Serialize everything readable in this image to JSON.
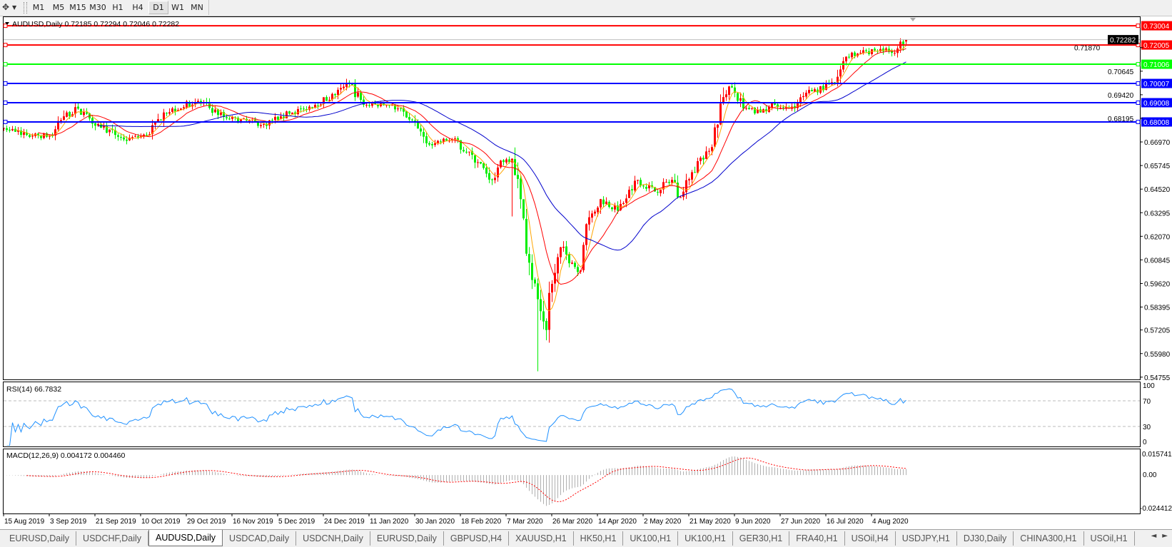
{
  "toolbar": {
    "timeframes": [
      "M1",
      "M5",
      "M15",
      "M30",
      "H1",
      "H4",
      "D1",
      "W1",
      "MN"
    ],
    "active_timeframe": "D1",
    "icons": [
      "crosshair-draw-icon",
      "dropdown-arrow-icon"
    ]
  },
  "chart": {
    "symbol_info": "AUDUSD,Daily  0.72185 0.72294 0.72046 0.72282",
    "price_axis_labels": [
      "0.71870",
      "0.70645",
      "0.69420",
      "0.68195",
      "0.66970",
      "0.65745",
      "0.64520",
      "0.63295",
      "0.62070",
      "0.60845",
      "0.59620",
      "0.58395",
      "0.57205",
      "0.55980",
      "0.54755"
    ],
    "current_price": {
      "label": "0.72282",
      "value": 0.72282
    },
    "horizontal_lines": [
      {
        "label": "0.73004",
        "value": 0.73004,
        "color": "#ff0000"
      },
      {
        "label": "0.72005",
        "value": 0.72005,
        "color": "#ff0000"
      },
      {
        "label": "0.71006",
        "value": 0.71006,
        "color": "#00ff00"
      },
      {
        "label": "0.70007",
        "value": 0.70007,
        "color": "#0000ff"
      },
      {
        "label": "0.69008",
        "value": 0.69008,
        "color": "#0000ff"
      },
      {
        "label": "0.68008",
        "value": 0.68008,
        "color": "#0000ff"
      }
    ],
    "date_labels": [
      "15 Aug 2019",
      "3 Sep 2019",
      "21 Sep 2019",
      "10 Oct 2019",
      "29 Oct 2019",
      "16 Nov 2019",
      "5 Dec 2019",
      "24 Dec 2019",
      "11 Jan 2020",
      "30 Jan 2020",
      "18 Feb 2020",
      "7 Mar 2020",
      "26 Mar 2020",
      "14 Apr 2020",
      "2 May 2020",
      "21 May 2020",
      "9 Jun 2020",
      "27 Jun 2020",
      "16 Jul 2020",
      "4 Aug 2020"
    ]
  },
  "chart_data": {
    "type": "candlestick",
    "symbol": "AUDUSD",
    "timeframe": "Daily",
    "ylim": [
      0.5464,
      0.7349
    ],
    "colors": {
      "bull": "#ff0000",
      "bear": "#00ee00",
      "ma_fast": "#ffa500",
      "ma_mid": "#ff0000",
      "ma_slow": "#0000cc",
      "rsi": "#1e90ff",
      "macd_hist": "#b0b0b0",
      "macd_signal": "#ff0000"
    },
    "moving_averages": [
      5,
      13,
      34
    ],
    "close_path": [
      {
        "date": "2019-08-15",
        "close": 0.677
      },
      {
        "date": "2019-08-27",
        "close": 0.673
      },
      {
        "date": "2019-09-04",
        "close": 0.673
      },
      {
        "date": "2019-09-08",
        "close": 0.683
      },
      {
        "date": "2019-09-14",
        "close": 0.687
      },
      {
        "date": "2019-09-22",
        "close": 0.679
      },
      {
        "date": "2019-10-03",
        "close": 0.671
      },
      {
        "date": "2019-10-12",
        "close": 0.673
      },
      {
        "date": "2019-10-19",
        "close": 0.685
      },
      {
        "date": "2019-11-02",
        "close": 0.691
      },
      {
        "date": "2019-11-14",
        "close": 0.682
      },
      {
        "date": "2019-11-29",
        "close": 0.679
      },
      {
        "date": "2019-12-05",
        "close": 0.683
      },
      {
        "date": "2019-12-15",
        "close": 0.687
      },
      {
        "date": "2019-12-27",
        "close": 0.694
      },
      {
        "date": "2020-01-02",
        "close": 0.7
      },
      {
        "date": "2020-01-08",
        "close": 0.689
      },
      {
        "date": "2020-01-20",
        "close": 0.689
      },
      {
        "date": "2020-01-28",
        "close": 0.681
      },
      {
        "date": "2020-02-03",
        "close": 0.669
      },
      {
        "date": "2020-02-13",
        "close": 0.671
      },
      {
        "date": "2020-02-21",
        "close": 0.663
      },
      {
        "date": "2020-02-29",
        "close": 0.65
      },
      {
        "date": "2020-03-04",
        "close": 0.66
      },
      {
        "date": "2020-03-09",
        "close": 0.661
      },
      {
        "date": "2020-03-13",
        "close": 0.63
      },
      {
        "date": "2020-03-16",
        "close": 0.607
      },
      {
        "date": "2020-03-19",
        "close": 0.588
      },
      {
        "date": "2020-03-22",
        "close": 0.572
      },
      {
        "date": "2020-03-25",
        "close": 0.596
      },
      {
        "date": "2020-03-28",
        "close": 0.615
      },
      {
        "date": "2020-04-02",
        "close": 0.607
      },
      {
        "date": "2020-04-05",
        "close": 0.603
      },
      {
        "date": "2020-04-08",
        "close": 0.627
      },
      {
        "date": "2020-04-14",
        "close": 0.64
      },
      {
        "date": "2020-04-20",
        "close": 0.634
      },
      {
        "date": "2020-04-29",
        "close": 0.65
      },
      {
        "date": "2020-05-05",
        "close": 0.644
      },
      {
        "date": "2020-05-12",
        "close": 0.65
      },
      {
        "date": "2020-05-16",
        "close": 0.641
      },
      {
        "date": "2020-05-21",
        "close": 0.654
      },
      {
        "date": "2020-05-28",
        "close": 0.665
      },
      {
        "date": "2020-06-02",
        "close": 0.693
      },
      {
        "date": "2020-06-06",
        "close": 0.698
      },
      {
        "date": "2020-06-11",
        "close": 0.687
      },
      {
        "date": "2020-06-17",
        "close": 0.685
      },
      {
        "date": "2020-06-23",
        "close": 0.689
      },
      {
        "date": "2020-06-29",
        "close": 0.687
      },
      {
        "date": "2020-07-08",
        "close": 0.696
      },
      {
        "date": "2020-07-17",
        "close": 0.7
      },
      {
        "date": "2020-07-22",
        "close": 0.714
      },
      {
        "date": "2020-07-28",
        "close": 0.716
      },
      {
        "date": "2020-08-05",
        "close": 0.718
      },
      {
        "date": "2020-08-11",
        "close": 0.716
      },
      {
        "date": "2020-08-15",
        "close": 0.72282
      }
    ],
    "low_extremes": [
      {
        "date": "2020-03-09",
        "low": 0.631
      },
      {
        "date": "2020-03-19",
        "low": 0.5506
      }
    ],
    "last_bar": {
      "open": 0.72185,
      "high": 0.72294,
      "low": 0.72046,
      "close": 0.72282
    }
  },
  "rsi": {
    "label": "RSI(14) 66.7832",
    "levels": [
      70,
      30
    ],
    "axis_labels": [
      "100",
      "70",
      "30",
      "0"
    ]
  },
  "macd": {
    "label": "MACD(12,26,9) 0.004172 0.004460",
    "axis_labels": [
      "0.015741",
      "0.00",
      "-0.024412"
    ],
    "range": [
      -0.024412,
      0.015741
    ]
  },
  "tabs": [
    "EURUSD,Daily",
    "USDCHF,Daily",
    "AUDUSD,Daily",
    "USDCAD,Daily",
    "USDCNH,Daily",
    "EURUSD,Daily",
    "GBPUSD,H4",
    "XAUUSD,H1",
    "HK50,H1",
    "UK100,H1",
    "UK100,H1",
    "GER30,H1",
    "FRA40,H1",
    "USOil,H4",
    "USDJPY,H1",
    "DJ30,Daily",
    "CHINA300,H1",
    "USOil,H1"
  ],
  "active_tab": "AUDUSD,Daily"
}
